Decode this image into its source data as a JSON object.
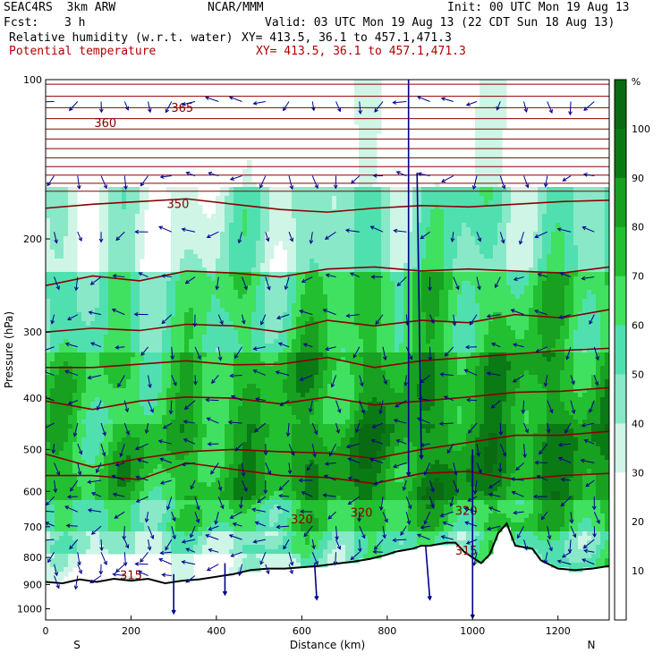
{
  "header": {
    "model": "SEAC4RS  3km ARW",
    "org": "NCAR/MMM",
    "init": "Init: 00 UTC Mon 19 Aug 13",
    "fcst_label": "Fcst:",
    "fcst_value": "3 h",
    "valid": "Valid: 03 UTC Mon 19 Aug 13 (22 CDT Sun 18 Aug 13)",
    "field1_name": "Relative humidity (w.r.t. water)",
    "field1_xy": "XY= 413.5, 36.1 to 457.1,471.3",
    "field2_name": "Potential temperature",
    "field2_xy": "XY= 413.5, 36.1 to 457.1,471.3",
    "field2_color": "#b00000"
  },
  "chart_data": {
    "type": "heatmap",
    "title": "",
    "xlabel": "Distance (km)",
    "ylabel": "Pressure (hPa)",
    "xlim": [
      0,
      1320
    ],
    "ylim": [
      1050,
      100
    ],
    "y_scale": "log",
    "xticks": [
      0,
      200,
      400,
      600,
      800,
      1000,
      1200
    ],
    "yticks": [
      100,
      200,
      300,
      400,
      500,
      600,
      700,
      800,
      900,
      1000
    ],
    "x_end_labels": {
      "left": "S",
      "right": "N"
    },
    "colorbar": {
      "unit": "%",
      "levels": [
        10,
        20,
        30,
        40,
        50,
        60,
        70,
        80,
        90,
        100
      ],
      "colors": [
        "#ffffff",
        "#ffffff",
        "#ffffff",
        "#cef5e6",
        "#88e8c8",
        "#50e0b0",
        "#40e060",
        "#22c030",
        "#18a020",
        "#0a7a15",
        "#0a6a12"
      ]
    },
    "theta_contour_labels": [
      {
        "label": "360",
        "x": 140,
        "p": 123
      },
      {
        "label": "365",
        "x": 320,
        "p": 115
      },
      {
        "label": "350",
        "x": 310,
        "p": 175
      },
      {
        "label": "320",
        "x": 600,
        "p": 690
      },
      {
        "label": "320",
        "x": 740,
        "p": 670
      },
      {
        "label": "320",
        "x": 985,
        "p": 665
      },
      {
        "label": "315",
        "x": 985,
        "p": 790
      },
      {
        "label": "315",
        "x": 200,
        "p": 880
      }
    ],
    "theta_contours": [
      {
        "level": 350,
        "p": [
          175,
          172,
          170,
          168,
          172,
          176,
          178,
          175,
          173,
          174,
          172,
          170,
          169
        ]
      },
      {
        "level": 345,
        "p": [
          245,
          235,
          240,
          230,
          232,
          236,
          228,
          226,
          230,
          228,
          230,
          232,
          226
        ]
      },
      {
        "level": 340,
        "p": [
          300,
          295,
          298,
          290,
          292,
          300,
          285,
          292,
          285,
          288,
          278,
          282,
          272
        ]
      },
      {
        "level": 335,
        "p": [
          350,
          350,
          345,
          340,
          346,
          345,
          335,
          350,
          340,
          335,
          330,
          325,
          322
        ]
      },
      {
        "level": 330,
        "p": [
          405,
          420,
          405,
          398,
          400,
          410,
          398,
          412,
          405,
          398,
          390,
          388,
          382
        ]
      },
      {
        "level": 325,
        "p": [
          510,
          540,
          520,
          505,
          500,
          505,
          508,
          520,
          500,
          485,
          470,
          470,
          462
        ]
      },
      {
        "level": 320,
        "p": [
          560,
          560,
          570,
          530,
          545,
          560,
          565,
          580,
          555,
          550,
          570,
          560,
          555
        ]
      }
    ],
    "terrain_p": [
      [
        0,
        890
      ],
      [
        40,
        895
      ],
      [
        80,
        880
      ],
      [
        120,
        890
      ],
      [
        160,
        878
      ],
      [
        200,
        885
      ],
      [
        240,
        878
      ],
      [
        280,
        895
      ],
      [
        320,
        885
      ],
      [
        360,
        880
      ],
      [
        400,
        870
      ],
      [
        440,
        860
      ],
      [
        480,
        845
      ],
      [
        520,
        840
      ],
      [
        560,
        840
      ],
      [
        600,
        835
      ],
      [
        640,
        830
      ],
      [
        680,
        822
      ],
      [
        720,
        815
      ],
      [
        760,
        805
      ],
      [
        800,
        790
      ],
      [
        820,
        780
      ],
      [
        840,
        775
      ],
      [
        860,
        770
      ],
      [
        880,
        760
      ],
      [
        900,
        760
      ],
      [
        940,
        750
      ],
      [
        960,
        750
      ],
      [
        980,
        780
      ],
      [
        1000,
        800
      ],
      [
        1020,
        820
      ],
      [
        1040,
        790
      ],
      [
        1060,
        720
      ],
      [
        1080,
        690
      ],
      [
        1100,
        760
      ],
      [
        1140,
        770
      ],
      [
        1160,
        810
      ],
      [
        1200,
        840
      ],
      [
        1240,
        845
      ],
      [
        1280,
        840
      ],
      [
        1320,
        830
      ]
    ]
  }
}
